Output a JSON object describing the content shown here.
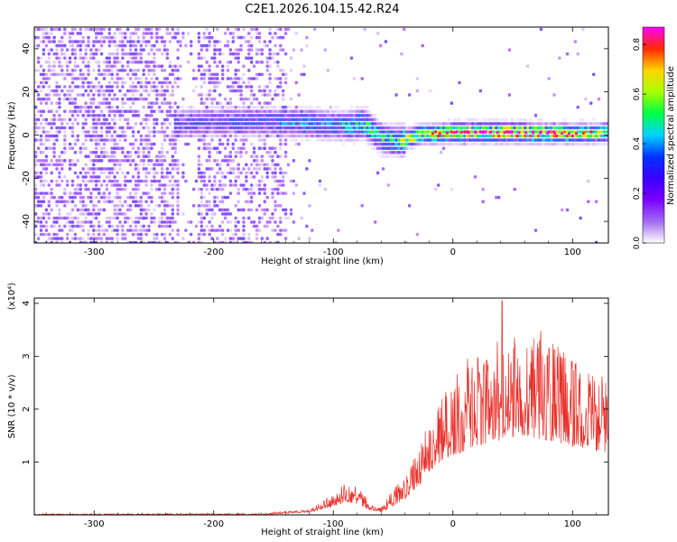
{
  "figure_title": "C2E1.2026.104.15.42.R24",
  "colors": {
    "snr_line": "#e8302a",
    "axis": "#000000",
    "colormap": [
      "#ffffff",
      "#a06bf0",
      "#7a00ff",
      "#3a00ff",
      "#0033ff",
      "#00d4ff",
      "#00ff44",
      "#aaff00",
      "#ffd400",
      "#ff2a00",
      "#ff00ff"
    ]
  },
  "chart_data": [
    {
      "type": "heatmap",
      "name": "spectrogram",
      "title": "C2E1.2026.104.15.42.R24",
      "xlabel": "Height of straight line (km)",
      "ylabel": "Frequency (Hz)",
      "xlim": [
        -350,
        130
      ],
      "ylim": [
        -50,
        50
      ],
      "xticks": [
        -300,
        -200,
        -100,
        0,
        100
      ],
      "yticks": [
        -40,
        -20,
        0,
        20,
        40
      ],
      "colorbar": {
        "label": "Normalized spectral amplitude",
        "range": [
          0.0,
          0.87
        ],
        "ticks": [
          "0.0",
          "0.2",
          "0.4",
          "0.6",
          "0.8"
        ]
      },
      "ridge": {
        "description": "dominant frequency track",
        "x": [
          -230,
          -200,
          -160,
          -120,
          -90,
          -75,
          -60,
          -45,
          -30,
          0,
          50,
          100,
          130
        ],
        "freq_hz": [
          5,
          6,
          6,
          5,
          4,
          5,
          -2,
          -3,
          0,
          1,
          1,
          0.5,
          1
        ],
        "peak_amplitude": [
          0.3,
          0.3,
          0.35,
          0.4,
          0.45,
          0.55,
          0.5,
          0.6,
          0.7,
          0.8,
          0.85,
          0.8,
          0.6
        ]
      }
    },
    {
      "type": "line",
      "name": "snr",
      "xlabel": "Height of straight line (km)",
      "ylabel": "SNR (10 * v/v)",
      "y_multiplier": "(x10⁴)",
      "xlim": [
        -350,
        130
      ],
      "ylim": [
        0,
        4.1
      ],
      "xticks": [
        -300,
        -200,
        -100,
        0,
        100
      ],
      "yticks": [
        1,
        2,
        3,
        4
      ],
      "envelope_x": [
        -350,
        -160,
        -120,
        -100,
        -90,
        -80,
        -70,
        -60,
        -50,
        -40,
        -30,
        -20,
        -10,
        0,
        20,
        40,
        60,
        80,
        100,
        120,
        130
      ],
      "envelope_y": [
        0.02,
        0.03,
        0.1,
        0.4,
        0.6,
        0.55,
        0.25,
        0.15,
        0.5,
        0.8,
        1.2,
        1.8,
        2.3,
        2.6,
        3.0,
        3.2,
        3.5,
        3.3,
        3.0,
        2.8,
        2.6
      ],
      "baseline_y": [
        0.0,
        0.0,
        0.05,
        0.15,
        0.25,
        0.2,
        0.1,
        0.05,
        0.15,
        0.3,
        0.5,
        0.8,
        1.0,
        1.1,
        1.3,
        1.4,
        1.5,
        1.4,
        1.3,
        1.2,
        1.1
      ],
      "spikes": [
        {
          "x": 41,
          "y": 4.05
        }
      ]
    }
  ]
}
